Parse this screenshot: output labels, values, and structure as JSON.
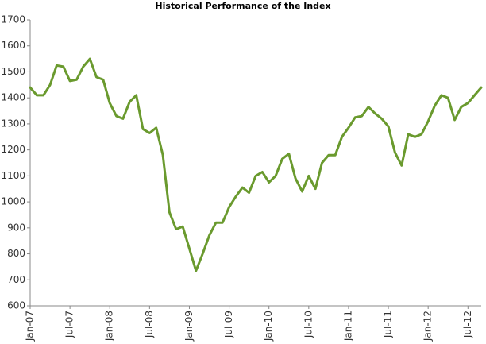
{
  "chart_data": {
    "type": "line",
    "title": "Historical Performance of the Index",
    "categories": [
      "Jan-07",
      null,
      null,
      null,
      null,
      null,
      "Jul-07",
      null,
      null,
      null,
      null,
      null,
      "Jan-08",
      null,
      null,
      null,
      null,
      null,
      "Jul-08",
      null,
      null,
      null,
      null,
      null,
      "Jan-09",
      null,
      null,
      null,
      null,
      null,
      "Jul-09",
      null,
      null,
      null,
      null,
      null,
      "Jan-10",
      null,
      null,
      null,
      null,
      null,
      "Jul-10",
      null,
      null,
      null,
      null,
      null,
      "Jan-11",
      null,
      null,
      null,
      null,
      null,
      "Jul-11",
      null,
      null,
      null,
      null,
      null,
      "Jan-12",
      null,
      null,
      null,
      null,
      null,
      "Jul-12",
      null,
      null
    ],
    "series": [
      {
        "name": "Index",
        "color": "#6a9a2e",
        "values": [
          1440,
          1410,
          1410,
          1450,
          1525,
          1520,
          1465,
          1470,
          1520,
          1550,
          1480,
          1470,
          1380,
          1330,
          1320,
          1385,
          1410,
          1280,
          1265,
          1285,
          1180,
          960,
          895,
          905,
          820,
          735,
          800,
          870,
          920,
          920,
          980,
          1020,
          1055,
          1035,
          1100,
          1115,
          1075,
          1100,
          1165,
          1185,
          1090,
          1040,
          1100,
          1050,
          1150,
          1180,
          1180,
          1250,
          1285,
          1325,
          1330,
          1365,
          1340,
          1320,
          1290,
          1190,
          1140,
          1260,
          1250,
          1260,
          1310,
          1370,
          1410,
          1400,
          1315,
          1365,
          1380,
          1410,
          1440
        ]
      }
    ],
    "ylim": [
      600,
      1700
    ],
    "yticks": [
      600,
      700,
      800,
      900,
      1000,
      1100,
      1200,
      1300,
      1400,
      1500,
      1600,
      1700
    ],
    "grid": false
  }
}
